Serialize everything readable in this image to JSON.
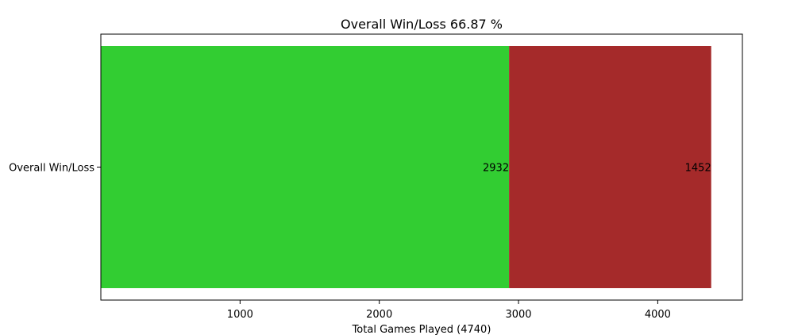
{
  "chart_data": {
    "type": "bar",
    "orientation": "horizontal",
    "stacked": true,
    "title": "Overall Win/Loss 66.87 %",
    "xlabel": "Total Games Played (4740)",
    "ylabel": "",
    "categories": [
      "Overall Win/Loss"
    ],
    "series": [
      {
        "values": [
          2932
        ],
        "color": "#32cd32"
      },
      {
        "values": [
          1452
        ],
        "color": "#a52a2a"
      }
    ],
    "data_labels": [
      "2932",
      "1452"
    ],
    "xlim": [
      0,
      4608
    ],
    "xticks": [
      1000,
      2000,
      3000,
      4000
    ],
    "xtick_labels": [
      "1000",
      "2000",
      "3000",
      "4000"
    ],
    "grid": false,
    "legend": "none"
  }
}
